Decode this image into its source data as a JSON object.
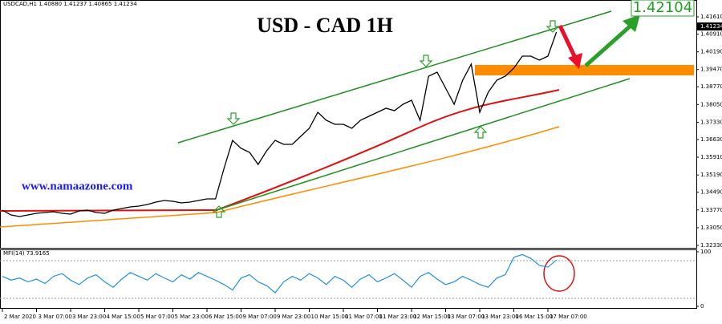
{
  "chart_data": [
    {
      "type": "line",
      "title": "USD - CAD 1H",
      "header": "USDCAD,H1  1.40880 1.41237 1.40865 1.41234",
      "watermark": "www.namaazone.com",
      "target_label": "1.42104",
      "price_label": "1.41234",
      "color": "#000000",
      "categories": [
        "2 Mar 2020",
        null,
        null,
        null,
        "3 Mar 07:00",
        null,
        null,
        null,
        "3 Mar 23:00",
        null,
        null,
        null,
        "4 Mar 15:00",
        null,
        null,
        null,
        "5 Mar 07:00",
        null,
        null,
        null,
        "5 Mar 23:00",
        null,
        null,
        null,
        "6 Mar 15:00",
        null,
        null,
        null,
        "9 Mar 07:00",
        null,
        null,
        null,
        "9 Mar 23:00",
        null,
        null,
        null,
        "10 Mar 15:00",
        null,
        null,
        null,
        "11 Mar 07:00",
        null,
        null,
        null,
        "11 Mar 23:00",
        null,
        null,
        null,
        "12 Mar 15:00",
        null,
        null,
        null,
        "13 Mar 07:00",
        null,
        null,
        null,
        "13 Mar 23:00",
        null,
        null,
        null,
        "16 Mar 15:00",
        null,
        null,
        null,
        "17 Mar 07:00",
        null
      ],
      "values": [
        1.33762,
        1.33567,
        1.33502,
        1.33567,
        1.33632,
        1.33665,
        1.33697,
        1.33632,
        1.336,
        1.3373,
        1.33762,
        1.33665,
        1.33632,
        1.33762,
        1.33827,
        1.33893,
        1.33925,
        1.3399,
        1.34088,
        1.34153,
        1.34121,
        1.34055,
        1.34088,
        1.34153,
        1.34218,
        1.34218,
        1.35456,
        1.36595,
        1.3627,
        1.36107,
        1.35618,
        1.36172,
        1.36595,
        1.36433,
        1.36433,
        1.36758,
        1.37084,
        1.37735,
        1.37409,
        1.37247,
        1.37247,
        1.37084,
        1.37409,
        1.37572,
        1.37735,
        1.37898,
        1.378,
        1.38061,
        1.38223,
        1.37409,
        1.392,
        1.39363,
        1.38712,
        1.38061,
        1.39038,
        1.39689,
        1.37735,
        1.38549,
        1.39038,
        1.392,
        1.39526,
        1.40014,
        1.40014,
        1.39852,
        1.40014,
        1.40991
      ],
      "ylim": [
        1.32265,
        1.41968
      ],
      "yticks": [
        {
          "value": 1.4161,
          "label": "1.41610"
        },
        {
          "value": 1.4091,
          "label": "1.40910"
        },
        {
          "value": 1.4019,
          "label": "1.40190"
        },
        {
          "value": 1.3947,
          "label": "1.39470"
        },
        {
          "value": 1.3877,
          "label": "1.38770"
        },
        {
          "value": 1.3805,
          "label": "1.38050"
        },
        {
          "value": 1.3733,
          "label": "1.37330"
        },
        {
          "value": 1.3663,
          "label": "1.36630"
        },
        {
          "value": 1.3591,
          "label": "1.35910"
        },
        {
          "value": 1.3519,
          "label": "1.35190"
        },
        {
          "value": 1.3449,
          "label": "1.34490"
        },
        {
          "value": 1.3377,
          "label": "1.33770"
        },
        {
          "value": 1.3305,
          "label": "1.33050"
        },
        {
          "value": 1.3233,
          "label": "1.32330"
        }
      ]
    },
    {
      "type": "line",
      "title": "MFI(14) 73.9165",
      "color": "#1e8fe6",
      "values": [
        55,
        48,
        52,
        45,
        50,
        42,
        55,
        60,
        48,
        40,
        52,
        58,
        45,
        35,
        50,
        62,
        55,
        48,
        60,
        52,
        45,
        58,
        50,
        62,
        55,
        48,
        40,
        30,
        52,
        58,
        45,
        38,
        25,
        45,
        55,
        48,
        60,
        52,
        40,
        55,
        48,
        35,
        50,
        58,
        45,
        52,
        60,
        48,
        35,
        55,
        62,
        50,
        40,
        45,
        55,
        48,
        40,
        35,
        52,
        58,
        90,
        95,
        88,
        75,
        72,
        85
      ],
      "ylim": [
        0,
        100
      ],
      "yticks": [
        100,
        0
      ]
    }
  ]
}
